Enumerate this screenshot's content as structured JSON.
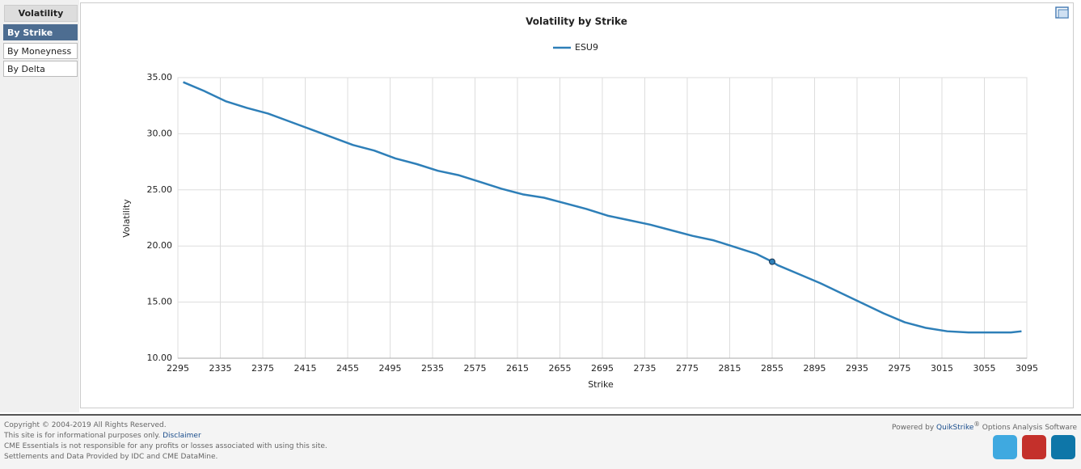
{
  "sidebar": {
    "header": "Volatility",
    "items": [
      "By Strike",
      "By Moneyness",
      "By Delta"
    ]
  },
  "chart_data": {
    "type": "line",
    "title": "Volatility by Strike",
    "x_label": "Strike",
    "y_label": "Volatility",
    "x": [
      2300,
      2320,
      2340,
      2360,
      2380,
      2400,
      2420,
      2440,
      2460,
      2480,
      2500,
      2520,
      2540,
      2560,
      2580,
      2600,
      2620,
      2640,
      2660,
      2680,
      2700,
      2720,
      2740,
      2760,
      2780,
      2800,
      2820,
      2840,
      2855,
      2860,
      2880,
      2900,
      2920,
      2940,
      2960,
      2980,
      3000,
      3020,
      3040,
      3060,
      3080,
      3090
    ],
    "series": [
      {
        "name": "ESU9",
        "color": "#2e7fb8",
        "values": [
          34.6,
          33.8,
          32.9,
          32.3,
          31.8,
          31.1,
          30.4,
          29.7,
          29.0,
          28.5,
          27.8,
          27.3,
          26.7,
          26.3,
          25.7,
          25.1,
          24.6,
          24.3,
          23.8,
          23.3,
          22.7,
          22.3,
          21.9,
          21.4,
          20.9,
          20.5,
          19.9,
          19.3,
          18.6,
          18.3,
          17.5,
          16.7,
          15.8,
          14.9,
          14.0,
          13.2,
          12.7,
          12.4,
          12.3,
          12.3,
          12.3,
          12.4
        ]
      }
    ],
    "highlight_index": 28,
    "xlim": [
      2295,
      3095
    ],
    "xticks": [
      2295,
      2335,
      2375,
      2415,
      2455,
      2495,
      2535,
      2575,
      2615,
      2655,
      2695,
      2735,
      2775,
      2815,
      2855,
      2895,
      2935,
      2975,
      3015,
      3055,
      3095
    ],
    "ylim": [
      10,
      35
    ],
    "yticks": [
      {
        "value": 10,
        "label": "10.00"
      },
      {
        "value": 15,
        "label": "15.00"
      },
      {
        "value": 20,
        "label": "20.00"
      },
      {
        "value": 25,
        "label": "25.00"
      },
      {
        "value": 30,
        "label": "30.00"
      },
      {
        "value": 35,
        "label": "35.00"
      }
    ],
    "grid": true,
    "legend": "top"
  },
  "footer": {
    "lines": [
      "Copyright © 2004-2019 All Rights Reserved.",
      "This site is for informational purposes only.",
      "CME Essentials is not responsible for any profits or losses associated with using this site.",
      "Settlements and Data Provided by IDC and CME DataMine."
    ],
    "disclaimer": "Disclaimer",
    "powered": [
      "Powered by",
      "QuikStrike",
      "®",
      "Options Analysis Software"
    ]
  }
}
